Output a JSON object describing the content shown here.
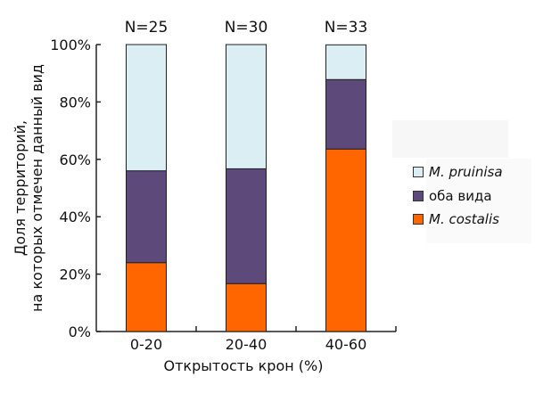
{
  "chart_data": {
    "type": "bar",
    "stacked": true,
    "categories": [
      "0-20",
      "20-40",
      "40-60"
    ],
    "annotations": [
      "N=25",
      "N=30",
      "N=33"
    ],
    "series": [
      {
        "name": "M. costalis",
        "values": [
          24,
          16.7,
          63.6
        ],
        "color": "#ff6600"
      },
      {
        "name": "оба вида",
        "values": [
          32,
          40,
          24.2
        ],
        "color": "#5e4a7a"
      },
      {
        "name": "M. pruinisa",
        "values": [
          44,
          43.3,
          12.1
        ],
        "color": "#daeef4"
      }
    ],
    "xlabel": "Открытость крон (%)",
    "ylabel": [
      "Доля территорий,",
      "на которых отмечен данный вид"
    ],
    "ylim": [
      0,
      100
    ],
    "yticks": [
      "0%",
      "20%",
      "40%",
      "60%",
      "80%",
      "100%"
    ],
    "grid": false,
    "legend_position": "right",
    "legend_order": [
      "M. pruinisa",
      "оба вида",
      "M. costalis"
    ]
  }
}
